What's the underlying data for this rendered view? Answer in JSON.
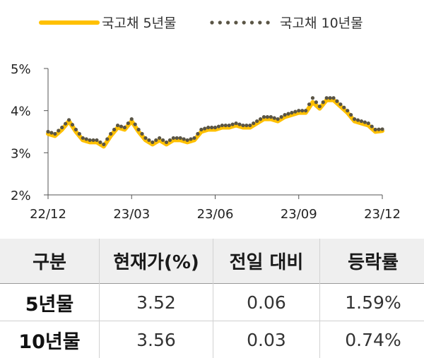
{
  "chart_data": {
    "type": "line",
    "ylim": [
      2,
      5
    ],
    "y_ticks": [
      "2%",
      "3%",
      "4%",
      "5%"
    ],
    "y_tick_values": [
      2,
      3,
      4,
      5
    ],
    "x_ticks": [
      "22/12",
      "23/03",
      "23/06",
      "23/09",
      "23/12"
    ],
    "x_tick_values": [
      0,
      3,
      6,
      9,
      12
    ],
    "x_range": [
      0,
      12
    ],
    "grid": false,
    "legend_position": "top",
    "series": [
      {
        "name": "국고채 5년물",
        "style": "solid",
        "color": "#FFC000",
        "x": [
          0.0,
          0.25,
          0.5,
          0.75,
          1.0,
          1.25,
          1.5,
          1.75,
          2.0,
          2.25,
          2.5,
          2.75,
          3.0,
          3.25,
          3.5,
          3.75,
          4.0,
          4.25,
          4.5,
          4.75,
          5.0,
          5.25,
          5.5,
          5.75,
          6.0,
          6.25,
          6.5,
          6.75,
          7.0,
          7.25,
          7.5,
          7.75,
          8.0,
          8.25,
          8.5,
          8.75,
          9.0,
          9.25,
          9.5,
          9.75,
          10.0,
          10.25,
          10.5,
          10.75,
          11.0,
          11.25,
          11.5,
          11.75,
          12.0
        ],
        "y": [
          3.45,
          3.4,
          3.55,
          3.75,
          3.5,
          3.3,
          3.25,
          3.25,
          3.15,
          3.4,
          3.6,
          3.55,
          3.75,
          3.5,
          3.3,
          3.2,
          3.3,
          3.2,
          3.3,
          3.3,
          3.25,
          3.3,
          3.5,
          3.55,
          3.55,
          3.6,
          3.6,
          3.65,
          3.6,
          3.6,
          3.7,
          3.8,
          3.8,
          3.75,
          3.85,
          3.9,
          3.95,
          3.95,
          4.2,
          4.05,
          4.25,
          4.25,
          4.1,
          3.95,
          3.75,
          3.7,
          3.65,
          3.5,
          3.52
        ]
      },
      {
        "name": "국고채 10년물",
        "style": "dotted",
        "color": "#5A5545",
        "x": [
          0.0,
          0.25,
          0.5,
          0.75,
          1.0,
          1.25,
          1.5,
          1.75,
          2.0,
          2.25,
          2.5,
          2.75,
          3.0,
          3.25,
          3.5,
          3.75,
          4.0,
          4.25,
          4.5,
          4.75,
          5.0,
          5.25,
          5.5,
          5.75,
          6.0,
          6.25,
          6.5,
          6.75,
          7.0,
          7.25,
          7.5,
          7.75,
          8.0,
          8.25,
          8.5,
          8.75,
          9.0,
          9.25,
          9.5,
          9.75,
          10.0,
          10.25,
          10.5,
          10.75,
          11.0,
          11.25,
          11.5,
          11.75,
          12.0
        ],
        "y": [
          3.5,
          3.45,
          3.6,
          3.78,
          3.55,
          3.35,
          3.3,
          3.3,
          3.2,
          3.45,
          3.65,
          3.6,
          3.8,
          3.55,
          3.35,
          3.25,
          3.35,
          3.25,
          3.35,
          3.35,
          3.3,
          3.35,
          3.55,
          3.6,
          3.6,
          3.65,
          3.65,
          3.7,
          3.65,
          3.65,
          3.75,
          3.85,
          3.85,
          3.8,
          3.9,
          3.95,
          4.0,
          4.0,
          4.3,
          4.1,
          4.3,
          4.3,
          4.15,
          4.0,
          3.8,
          3.75,
          3.7,
          3.55,
          3.56
        ]
      }
    ]
  },
  "table": {
    "headers": [
      "구분",
      "현재가(%)",
      "전일 대비",
      "등락률"
    ],
    "rows": [
      {
        "label": "5년물",
        "price": "3.52",
        "change": "0.06",
        "rate": "1.59%"
      },
      {
        "label": "10년물",
        "price": "3.56",
        "change": "0.03",
        "rate": "0.74%"
      }
    ]
  }
}
